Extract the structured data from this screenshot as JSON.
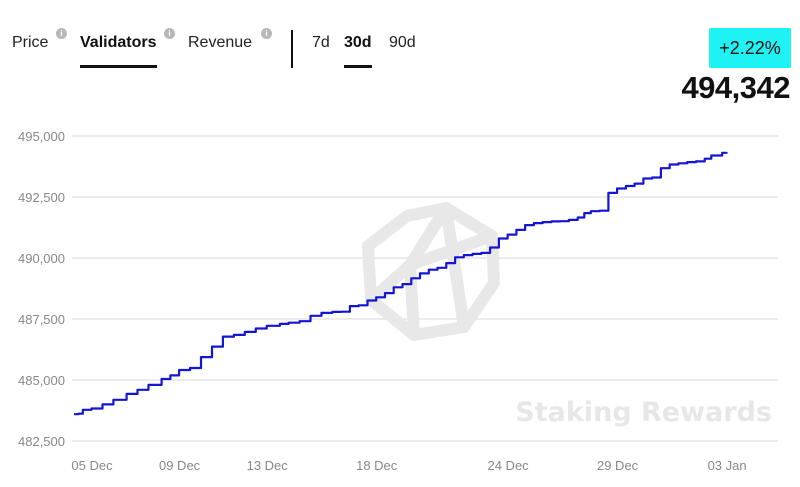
{
  "metric_tabs": [
    {
      "label": "Price",
      "active": false,
      "info_icon": "info-icon"
    },
    {
      "label": "Validators",
      "active": true,
      "info_icon": "info-icon"
    },
    {
      "label": "Revenue",
      "active": false,
      "info_icon": "info-icon"
    }
  ],
  "info_icon_glyph": "i",
  "ranges": [
    {
      "label": "7d",
      "active": false
    },
    {
      "label": "30d",
      "active": true
    },
    {
      "label": "90d",
      "active": false
    }
  ],
  "change_badge": {
    "text": "+2.22%",
    "color": "#1ff2f2"
  },
  "current_value": "494,342",
  "watermark": {
    "text": "Staking Rewards",
    "icon": "staking-rewards-logo-icon"
  },
  "colors": {
    "line": "#1414d4",
    "grid": "#d9d9d9",
    "badge": "#1ff2f2"
  },
  "chart_data": {
    "type": "line",
    "title": "",
    "xlabel": "",
    "ylabel": "",
    "ylim": [
      482500,
      495000
    ],
    "y_ticks": [
      "482,500",
      "485,000",
      "487,500",
      "490,000",
      "492,500",
      "495,000"
    ],
    "y_tick_values": [
      482500,
      485000,
      487500,
      490000,
      492500,
      495000
    ],
    "x_ticks": [
      "05 Dec",
      "09 Dec",
      "13 Dec",
      "18 Dec",
      "24 Dec",
      "29 Dec",
      "03 Jan"
    ],
    "x_tick_days": [
      0,
      4,
      8,
      13,
      19,
      24,
      29
    ],
    "grid": true,
    "series": [
      {
        "step": true,
        "x_days": [
          0,
          0.2,
          0.4,
          0.8,
          1.3,
          1.8,
          2.4,
          2.9,
          3.4,
          4.0,
          4.4,
          4.8,
          5.3,
          5.8,
          6.3,
          6.8,
          7.3,
          7.8,
          8.3,
          8.8,
          9.4,
          9.8,
          10.3,
          10.8,
          11.3,
          11.8,
          12.2,
          12.6,
          13.0,
          13.4,
          13.8,
          14.2,
          14.6,
          15.0,
          15.4,
          15.8,
          16.2,
          16.6,
          17.0,
          17.4,
          17.8,
          18.2,
          18.6,
          19.0,
          19.4,
          19.8,
          20.2,
          20.6,
          21.0,
          21.4,
          21.8,
          22.2,
          22.6,
          23.0,
          23.3,
          23.6,
          24.0,
          24.4,
          24.8,
          25.2,
          25.6,
          26.0,
          26.4,
          26.8,
          27.2,
          27.6,
          28.0,
          28.4,
          28.8,
          29.1,
          29.6,
          29.8
        ],
        "values": [
          483600,
          483620,
          483780,
          483830,
          484000,
          484190,
          484430,
          484600,
          484800,
          485040,
          485190,
          485410,
          485490,
          485940,
          486370,
          486780,
          486850,
          486970,
          487110,
          487220,
          487300,
          487350,
          487410,
          487630,
          487750,
          487790,
          487800,
          488030,
          488060,
          488260,
          488390,
          488560,
          488800,
          488930,
          489170,
          489370,
          489520,
          489600,
          489790,
          490030,
          490120,
          490170,
          490210,
          490430,
          490800,
          490960,
          491150,
          491350,
          491430,
          491470,
          491500,
          491510,
          491560,
          491660,
          491840,
          491920,
          491940,
          492670,
          492850,
          492950,
          493050,
          493260,
          493300,
          493680,
          493830,
          493880,
          493930,
          493960,
          494070,
          494200,
          494310,
          494342
        ]
      }
    ]
  }
}
